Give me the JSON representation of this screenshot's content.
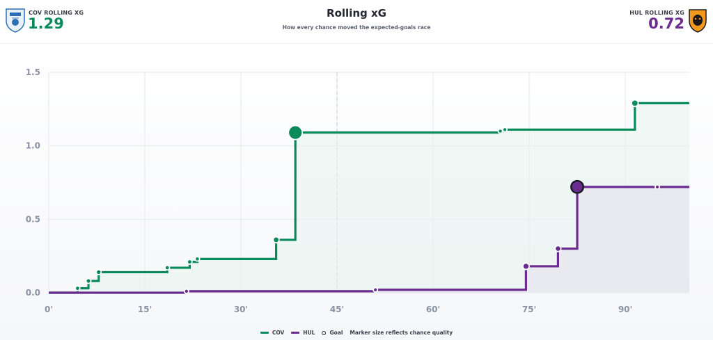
{
  "header": {
    "title": "Rolling xG",
    "subtitle": "How every chance moved the expected-goals race",
    "home": {
      "label": "COV ROLLING XG",
      "value": "1.29",
      "color": "#0a8a5a",
      "crest_icon": "coventry-crest-icon"
    },
    "away": {
      "label": "HUL ROLLING XG",
      "value": "0.72",
      "color": "#6a2c8e",
      "crest_icon": "hull-crest-icon"
    }
  },
  "legend": {
    "home_label": "COV",
    "away_label": "HUL",
    "goal_label": "Goal",
    "note": "Marker size reflects chance quality"
  },
  "chart_data": {
    "type": "line",
    "step": true,
    "title": "Rolling xG",
    "xlabel": "",
    "ylabel": "",
    "xlim": [
      0,
      100
    ],
    "ylim": [
      0,
      1.5
    ],
    "x_ticks": [
      0,
      15,
      30,
      45,
      60,
      75,
      90
    ],
    "x_tick_labels": [
      "0'",
      "15'",
      "30'",
      "45'",
      "60'",
      "75'",
      "90'"
    ],
    "y_ticks": [
      0,
      0.5,
      1.0,
      1.5
    ],
    "y_tick_labels": [
      "0.0",
      "0.5",
      "1.0",
      "1.5"
    ],
    "halftime_minute": 45,
    "grid": true,
    "legend_position": "bottom-center",
    "end_minute": 100,
    "series": [
      {
        "name": "COV",
        "color": "#0a8a5a",
        "fill": "#e6f4ee",
        "start": 0,
        "points": [
          {
            "minute": 4.5,
            "cum": 0.03,
            "xg": 0.03,
            "goal": false
          },
          {
            "minute": 6.2,
            "cum": 0.08,
            "xg": 0.05,
            "goal": false
          },
          {
            "minute": 7.8,
            "cum": 0.14,
            "xg": 0.06,
            "goal": false
          },
          {
            "minute": 18.5,
            "cum": 0.17,
            "xg": 0.03,
            "goal": false
          },
          {
            "minute": 22.0,
            "cum": 0.21,
            "xg": 0.04,
            "goal": false
          },
          {
            "minute": 23.2,
            "cum": 0.23,
            "xg": 0.02,
            "goal": false
          },
          {
            "minute": 35.5,
            "cum": 0.36,
            "xg": 0.13,
            "goal": false
          },
          {
            "minute": 38.5,
            "cum": 1.09,
            "xg": 0.73,
            "goal": false
          },
          {
            "minute": 70.5,
            "cum": 1.1,
            "xg": 0.01,
            "goal": false
          },
          {
            "minute": 71.2,
            "cum": 1.11,
            "xg": 0.01,
            "goal": false
          },
          {
            "minute": 91.5,
            "cum": 1.29,
            "xg": 0.18,
            "goal": false
          }
        ]
      },
      {
        "name": "HUL",
        "color": "#6a2c8e",
        "fill": "#e6e8ee",
        "start": 0,
        "points": [
          {
            "minute": 21.5,
            "cum": 0.01,
            "xg": 0.01,
            "goal": false
          },
          {
            "minute": 51.0,
            "cum": 0.02,
            "xg": 0.01,
            "goal": false
          },
          {
            "minute": 74.5,
            "cum": 0.18,
            "xg": 0.16,
            "goal": false
          },
          {
            "minute": 79.5,
            "cum": 0.3,
            "xg": 0.12,
            "goal": false
          },
          {
            "minute": 82.5,
            "cum": 0.72,
            "xg": 0.42,
            "goal": true
          },
          {
            "minute": 95.0,
            "cum": 0.72,
            "xg": 0.005,
            "goal": false
          }
        ]
      }
    ]
  }
}
